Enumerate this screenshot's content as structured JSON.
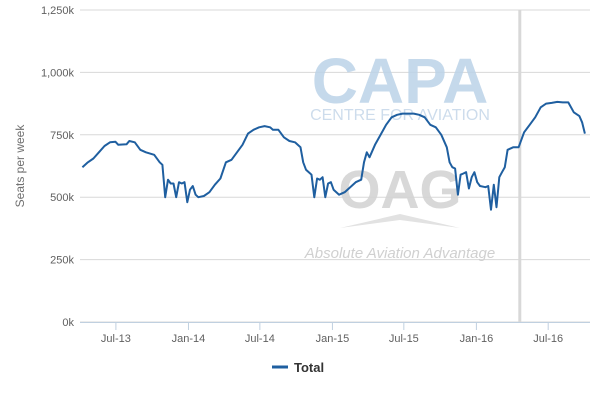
{
  "chart_data": {
    "type": "line",
    "title": "",
    "xlabel": "",
    "ylabel": "Seats per week",
    "ylim": [
      0,
      1250000
    ],
    "y_ticks": [
      {
        "value": 0,
        "label": "0k"
      },
      {
        "value": 250000,
        "label": "250k"
      },
      {
        "value": 500000,
        "label": "500k"
      },
      {
        "value": 750000,
        "label": "750k"
      },
      {
        "value": 1000000,
        "label": "1,000k"
      },
      {
        "value": 1250000,
        "label": "1,250k"
      }
    ],
    "x_range": [
      "2013-04-01",
      "2016-10-15"
    ],
    "x_ticks": [
      {
        "date": "2013-07-01",
        "label": "Jul-13"
      },
      {
        "date": "2014-01-01",
        "label": "Jan-14"
      },
      {
        "date": "2014-07-01",
        "label": "Jul-14"
      },
      {
        "date": "2015-01-01",
        "label": "Jan-15"
      },
      {
        "date": "2015-07-01",
        "label": "Jul-15"
      },
      {
        "date": "2016-01-01",
        "label": "Jan-16"
      },
      {
        "date": "2016-07-01",
        "label": "Jul-16"
      }
    ],
    "grid": "horizontal",
    "marker_line_date": "2016-04-20",
    "legend_position": "bottom-center",
    "series": [
      {
        "name": "Total",
        "color": "#1f5fa0",
        "points": [
          [
            "2013-04-07",
            620000
          ],
          [
            "2013-04-21",
            640000
          ],
          [
            "2013-05-05",
            655000
          ],
          [
            "2013-05-19",
            680000
          ],
          [
            "2013-06-02",
            705000
          ],
          [
            "2013-06-16",
            720000
          ],
          [
            "2013-06-30",
            722000
          ],
          [
            "2013-07-07",
            710000
          ],
          [
            "2013-07-28",
            712000
          ],
          [
            "2013-08-04",
            725000
          ],
          [
            "2013-08-18",
            720000
          ],
          [
            "2013-09-01",
            690000
          ],
          [
            "2013-09-15",
            680000
          ],
          [
            "2013-10-06",
            670000
          ],
          [
            "2013-10-20",
            640000
          ],
          [
            "2013-10-27",
            630000
          ],
          [
            "2013-11-03",
            500000
          ],
          [
            "2013-11-10",
            570000
          ],
          [
            "2013-11-17",
            555000
          ],
          [
            "2013-11-24",
            555000
          ],
          [
            "2013-12-01",
            500000
          ],
          [
            "2013-12-08",
            560000
          ],
          [
            "2013-12-15",
            555000
          ],
          [
            "2013-12-22",
            560000
          ],
          [
            "2013-12-29",
            480000
          ],
          [
            "2014-01-05",
            530000
          ],
          [
            "2014-01-12",
            545000
          ],
          [
            "2014-01-19",
            510000
          ],
          [
            "2014-01-26",
            500000
          ],
          [
            "2014-02-09",
            505000
          ],
          [
            "2014-02-23",
            520000
          ],
          [
            "2014-03-09",
            550000
          ],
          [
            "2014-03-23",
            575000
          ],
          [
            "2014-04-06",
            640000
          ],
          [
            "2014-04-20",
            650000
          ],
          [
            "2014-05-04",
            680000
          ],
          [
            "2014-05-18",
            710000
          ],
          [
            "2014-06-01",
            755000
          ],
          [
            "2014-06-15",
            770000
          ],
          [
            "2014-06-29",
            780000
          ],
          [
            "2014-07-13",
            785000
          ],
          [
            "2014-07-27",
            780000
          ],
          [
            "2014-08-03",
            770000
          ],
          [
            "2014-08-17",
            770000
          ],
          [
            "2014-08-31",
            740000
          ],
          [
            "2014-09-14",
            725000
          ],
          [
            "2014-09-28",
            720000
          ],
          [
            "2014-10-12",
            700000
          ],
          [
            "2014-10-19",
            640000
          ],
          [
            "2014-10-26",
            610000
          ],
          [
            "2014-11-02",
            600000
          ],
          [
            "2014-11-09",
            590000
          ],
          [
            "2014-11-16",
            500000
          ],
          [
            "2014-11-23",
            575000
          ],
          [
            "2014-11-30",
            570000
          ],
          [
            "2014-12-07",
            580000
          ],
          [
            "2014-12-14",
            500000
          ],
          [
            "2014-12-21",
            555000
          ],
          [
            "2014-12-28",
            560000
          ],
          [
            "2015-01-04",
            530000
          ],
          [
            "2015-01-18",
            510000
          ],
          [
            "2015-02-01",
            520000
          ],
          [
            "2015-02-15",
            540000
          ],
          [
            "2015-03-01",
            560000
          ],
          [
            "2015-03-15",
            570000
          ],
          [
            "2015-03-22",
            640000
          ],
          [
            "2015-03-29",
            680000
          ],
          [
            "2015-04-05",
            660000
          ],
          [
            "2015-04-19",
            710000
          ],
          [
            "2015-05-03",
            750000
          ],
          [
            "2015-05-17",
            790000
          ],
          [
            "2015-05-31",
            820000
          ],
          [
            "2015-06-14",
            830000
          ],
          [
            "2015-06-28",
            835000
          ],
          [
            "2015-07-12",
            835000
          ],
          [
            "2015-07-26",
            835000
          ],
          [
            "2015-08-09",
            830000
          ],
          [
            "2015-08-23",
            820000
          ],
          [
            "2015-09-06",
            790000
          ],
          [
            "2015-09-20",
            780000
          ],
          [
            "2015-10-04",
            750000
          ],
          [
            "2015-10-18",
            700000
          ],
          [
            "2015-10-25",
            640000
          ],
          [
            "2015-11-01",
            620000
          ],
          [
            "2015-11-08",
            615000
          ],
          [
            "2015-11-15",
            510000
          ],
          [
            "2015-11-22",
            590000
          ],
          [
            "2015-11-29",
            595000
          ],
          [
            "2015-12-06",
            600000
          ],
          [
            "2015-12-13",
            535000
          ],
          [
            "2015-12-20",
            580000
          ],
          [
            "2015-12-27",
            600000
          ],
          [
            "2016-01-03",
            560000
          ],
          [
            "2016-01-10",
            545000
          ],
          [
            "2016-01-24",
            540000
          ],
          [
            "2016-01-31",
            545000
          ],
          [
            "2016-02-07",
            450000
          ],
          [
            "2016-02-14",
            550000
          ],
          [
            "2016-02-21",
            460000
          ],
          [
            "2016-02-28",
            580000
          ],
          [
            "2016-03-06",
            600000
          ],
          [
            "2016-03-13",
            620000
          ],
          [
            "2016-03-20",
            690000
          ],
          [
            "2016-04-03",
            700000
          ],
          [
            "2016-04-17",
            700000
          ],
          [
            "2016-05-01",
            760000
          ],
          [
            "2016-05-15",
            790000
          ],
          [
            "2016-05-29",
            820000
          ],
          [
            "2016-06-12",
            860000
          ],
          [
            "2016-06-26",
            875000
          ],
          [
            "2016-07-10",
            878000
          ],
          [
            "2016-07-24",
            882000
          ],
          [
            "2016-08-07",
            880000
          ],
          [
            "2016-08-21",
            880000
          ],
          [
            "2016-09-04",
            840000
          ],
          [
            "2016-09-18",
            825000
          ],
          [
            "2016-09-25",
            800000
          ],
          [
            "2016-10-02",
            755000
          ]
        ]
      }
    ]
  },
  "watermark": {
    "brand_big": "CAPA",
    "brand_sub": "CENTRE FOR AVIATION",
    "partner_big": "OAG",
    "partner_tagline": "Absolute Aviation Advantage",
    "capa_color": "#bcd3e8",
    "oag_color": "#d4d4d4"
  },
  "legend": {
    "label": "Total"
  }
}
